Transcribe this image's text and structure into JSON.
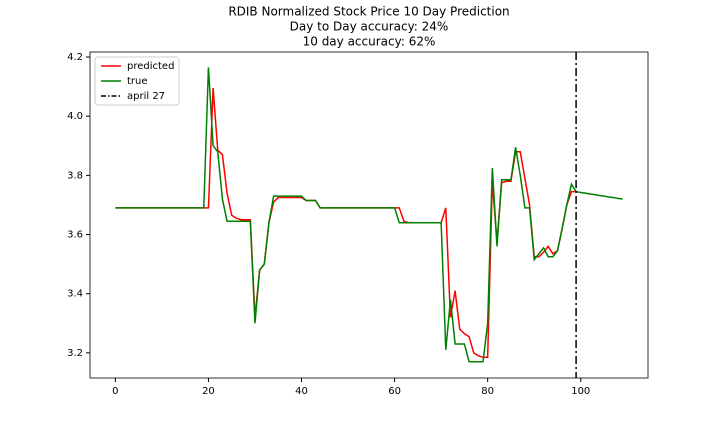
{
  "chart_data": {
    "type": "line",
    "title": "RDIB Normalized Stock Price 10 Day Prediction",
    "subtitle": [
      "Day to Day accuracy: 24%",
      "10 day accuracy: 62%"
    ],
    "x": [
      0,
      1,
      2,
      3,
      4,
      5,
      6,
      7,
      8,
      9,
      10,
      11,
      12,
      13,
      14,
      15,
      16,
      17,
      18,
      19,
      20,
      21,
      22,
      23,
      24,
      25,
      26,
      27,
      28,
      29,
      30,
      31,
      32,
      33,
      34,
      35,
      36,
      37,
      38,
      39,
      40,
      41,
      42,
      43,
      44,
      45,
      46,
      47,
      48,
      49,
      50,
      51,
      52,
      53,
      54,
      55,
      56,
      57,
      58,
      59,
      60,
      61,
      62,
      63,
      64,
      65,
      66,
      67,
      68,
      69,
      70,
      71,
      72,
      73,
      74,
      75,
      76,
      77,
      78,
      79,
      80,
      81,
      82,
      83,
      84,
      85,
      86,
      87,
      88,
      89,
      90,
      91,
      92,
      93,
      94,
      95,
      96,
      97,
      98,
      99,
      100,
      101,
      102,
      103,
      104,
      105,
      106,
      107,
      108,
      109
    ],
    "series": [
      {
        "name": "predicted",
        "color": "#ff0000",
        "values": [
          3.69,
          3.69,
          3.69,
          3.69,
          3.69,
          3.69,
          3.69,
          3.69,
          3.69,
          3.69,
          3.69,
          3.69,
          3.69,
          3.69,
          3.69,
          3.69,
          3.69,
          3.69,
          3.69,
          3.69,
          3.69,
          4.095,
          3.885,
          3.87,
          3.74,
          3.665,
          3.655,
          3.65,
          3.65,
          3.65,
          3.32,
          3.48,
          3.5,
          3.64,
          3.71,
          3.725,
          3.725,
          3.725,
          3.725,
          3.725,
          3.725,
          3.715,
          3.715,
          3.715,
          3.69,
          3.69,
          3.69,
          3.69,
          3.69,
          3.69,
          3.69,
          3.69,
          3.69,
          3.69,
          3.69,
          3.69,
          3.69,
          3.69,
          3.69,
          3.69,
          3.69,
          3.69,
          3.645,
          3.64,
          3.64,
          3.64,
          3.64,
          3.64,
          3.64,
          3.64,
          3.64,
          3.69,
          3.32,
          3.41,
          3.28,
          3.265,
          3.255,
          3.2,
          3.19,
          3.185,
          3.185,
          3.78,
          3.575,
          3.775,
          3.78,
          3.78,
          3.88,
          3.88,
          3.79,
          3.7,
          3.525,
          3.525,
          3.54,
          3.56,
          3.535,
          3.545,
          3.62,
          3.7,
          3.745,
          3.745,
          null,
          null,
          null,
          null,
          null,
          null,
          null,
          null,
          null,
          null
        ]
      },
      {
        "name": "true",
        "color": "#008000",
        "values": [
          3.69,
          3.69,
          3.69,
          3.69,
          3.69,
          3.69,
          3.69,
          3.69,
          3.69,
          3.69,
          3.69,
          3.69,
          3.69,
          3.69,
          3.69,
          3.69,
          3.69,
          3.69,
          3.69,
          3.69,
          4.165,
          3.9,
          3.88,
          3.72,
          3.645,
          3.645,
          3.645,
          3.645,
          3.645,
          3.645,
          3.3,
          3.48,
          3.5,
          3.64,
          3.73,
          3.73,
          3.73,
          3.73,
          3.73,
          3.73,
          3.73,
          3.715,
          3.715,
          3.715,
          3.69,
          3.69,
          3.69,
          3.69,
          3.69,
          3.69,
          3.69,
          3.69,
          3.69,
          3.69,
          3.69,
          3.69,
          3.69,
          3.69,
          3.69,
          3.69,
          3.69,
          3.64,
          3.64,
          3.64,
          3.64,
          3.64,
          3.64,
          3.64,
          3.64,
          3.64,
          3.64,
          3.21,
          3.38,
          3.23,
          3.23,
          3.23,
          3.17,
          3.17,
          3.17,
          3.17,
          3.3,
          3.825,
          3.56,
          3.785,
          3.785,
          3.785,
          3.895,
          3.8,
          3.69,
          3.69,
          3.515,
          3.535,
          3.555,
          3.525,
          3.525,
          3.545,
          3.62,
          3.7,
          3.77,
          3.745,
          3.742,
          3.74,
          3.737,
          3.735,
          3.732,
          3.73,
          3.727,
          3.725,
          3.722,
          3.72
        ]
      }
    ],
    "vline": {
      "x": 99,
      "label": "april 27",
      "color": "#000000"
    },
    "xlim": [
      -5.45,
      114.45
    ],
    "xticks": [
      0,
      20,
      40,
      60,
      80,
      100
    ],
    "ylim": [
      3.115,
      4.217
    ],
    "yticks": [
      3.2,
      3.4,
      3.6,
      3.8,
      {
        "value": 4,
        "label": "4.0"
      },
      4.2
    ],
    "grid": false,
    "legend": "upper left"
  }
}
